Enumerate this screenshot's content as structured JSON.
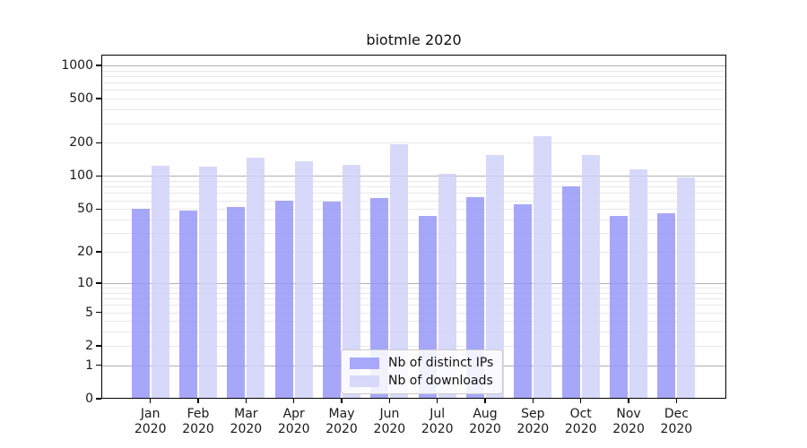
{
  "chart_data": {
    "type": "bar",
    "title": "biotmle 2020",
    "categories": [
      "Jan",
      "Feb",
      "Mar",
      "Apr",
      "May",
      "Jun",
      "Jul",
      "Aug",
      "Sep",
      "Oct",
      "Nov",
      "Dec"
    ],
    "x_year_label": "2020",
    "series": [
      {
        "name": "Nb of distinct IPs",
        "color": "rgba(152,152,249,0.85)",
        "swatch": "#a8a8fa",
        "values": [
          50,
          48,
          52,
          60,
          59,
          63,
          43,
          64,
          55,
          81,
          43,
          46
        ]
      },
      {
        "name": "Nb of downloads",
        "color": "rgba(209,209,249,0.85)",
        "swatch": "#d8d8fa",
        "values": [
          124,
          122,
          147,
          135,
          126,
          194,
          104,
          154,
          230,
          156,
          115,
          98
        ]
      }
    ],
    "y_scale": "log1p",
    "y_ticks": [
      0,
      1,
      2,
      5,
      10,
      20,
      50,
      100,
      200,
      500,
      1000
    ],
    "ylim": [
      0,
      1250
    ],
    "grid": {
      "major_at": [
        1,
        10,
        100,
        1000
      ],
      "minor_at": [
        2,
        3,
        4,
        5,
        6,
        7,
        8,
        9,
        20,
        30,
        40,
        50,
        60,
        70,
        80,
        90,
        200,
        300,
        400,
        500,
        600,
        700,
        800,
        900
      ],
      "major_color": "#b0b0b0",
      "minor_color": "#e8e8e8"
    },
    "legend_position": "bottom-center",
    "axis_color": "#000000",
    "text_color": "#1a1a1a"
  }
}
